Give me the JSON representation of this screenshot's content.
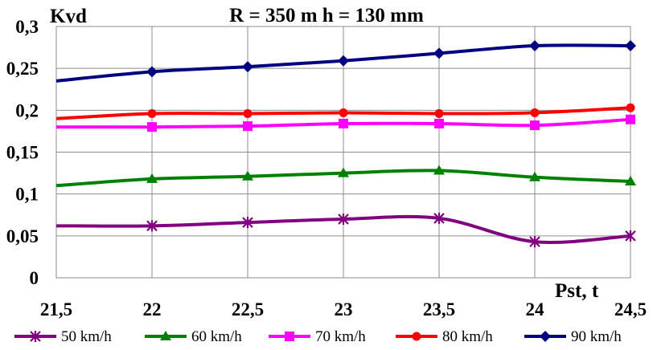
{
  "chart_data": {
    "type": "line",
    "title": "R = 350 m  h = 130 mm",
    "xlabel": "Pst, t",
    "ylabel": "Kvd",
    "x": [
      21.5,
      22,
      22.5,
      23,
      23.5,
      24,
      24.5
    ],
    "x_tick_labels": [
      "21,5",
      "22",
      "22,5",
      "23",
      "23,5",
      "24",
      "24,5"
    ],
    "xlim": [
      21.5,
      24.5
    ],
    "ylim": [
      0,
      0.3
    ],
    "y_ticks": [
      0,
      0.05,
      0.1,
      0.15,
      0.2,
      0.25,
      0.3
    ],
    "y_tick_labels": [
      "0",
      "0,05",
      "0,1",
      "0,15",
      "0,2",
      "0,25",
      "0,3"
    ],
    "grid": true,
    "legend_position": "bottom",
    "series": [
      {
        "name": "50 km/h",
        "color": "#800080",
        "marker": "star",
        "values": [
          0.062,
          0.062,
          0.066,
          0.07,
          0.071,
          0.043,
          0.05
        ]
      },
      {
        "name": "60 km/h",
        "color": "#008000",
        "marker": "triangle",
        "values": [
          0.11,
          0.118,
          0.121,
          0.125,
          0.128,
          0.12,
          0.115
        ]
      },
      {
        "name": "70 km/h",
        "color": "#ff00ff",
        "marker": "square",
        "values": [
          0.18,
          0.18,
          0.181,
          0.184,
          0.184,
          0.182,
          0.189
        ]
      },
      {
        "name": "80 km/h",
        "color": "#ff0000",
        "marker": "circle",
        "values": [
          0.19,
          0.196,
          0.196,
          0.197,
          0.196,
          0.197,
          0.203
        ]
      },
      {
        "name": "90 km/h",
        "color": "#000080",
        "marker": "diamond",
        "values": [
          0.235,
          0.246,
          0.252,
          0.259,
          0.268,
          0.277,
          0.277
        ]
      }
    ]
  }
}
